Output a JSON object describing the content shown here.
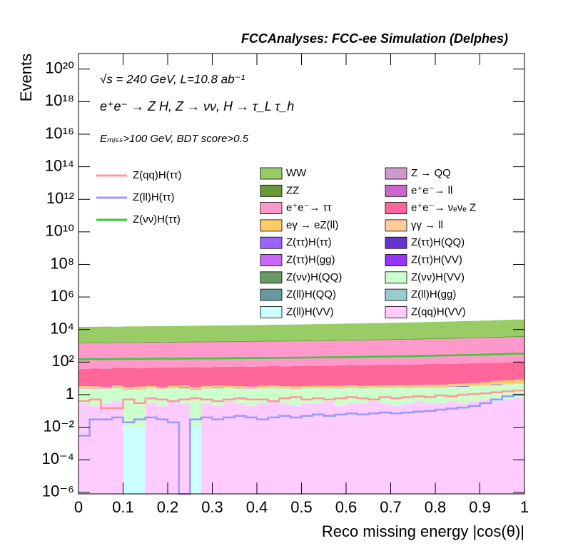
{
  "chart_data": {
    "type": "stacked_histogram",
    "title": "FCCAnalyses: FCC-ee Simulation (Delphes)",
    "annotations": [
      "√s = 240 GeV, L=10.8 ab⁻¹",
      "e⁺e⁻ → Z H, Z → νν, H → τ_L τ_h",
      "Eₘᵢₛₛ>100 GeV, BDT score>0.5"
    ],
    "x_label": "Reco missing energy |cos(θ)|",
    "y_label": "Events",
    "log_y": true,
    "xlim": [
      0,
      1
    ],
    "ylim": [
      8e-07,
      9e+20
    ],
    "xticks": [
      0,
      0.1,
      0.2,
      0.3,
      0.4,
      0.5,
      0.6,
      0.7,
      0.8,
      0.9,
      1
    ],
    "yticks": [
      {
        "value": 1e-06,
        "label": "10⁻⁶"
      },
      {
        "value": 0.0001,
        "label": "10⁻⁴"
      },
      {
        "value": 0.01,
        "label": "10⁻²"
      },
      1,
      {
        "value": 100,
        "label": "10²"
      },
      {
        "value": 10000,
        "label": "10⁴"
      },
      {
        "value": 1000000.0,
        "label": "10⁶"
      },
      {
        "value": 100000000.0,
        "label": "10⁸"
      },
      {
        "value": 10000000000.0,
        "label": "10¹⁰"
      },
      {
        "value": 1000000000000.0,
        "label": "10¹²"
      },
      {
        "value": 100000000000000.0,
        "label": "10¹⁴"
      },
      {
        "value": 1e+16,
        "label": "10¹⁶"
      },
      {
        "value": 1e+18,
        "label": "10¹⁸"
      },
      {
        "value": 1e+20,
        "label": "10²⁰"
      }
    ],
    "bins": [
      0,
      0.025,
      0.05,
      0.075,
      0.1,
      0.125,
      0.15,
      0.175,
      0.2,
      0.225,
      0.25,
      0.275,
      0.3,
      0.325,
      0.35,
      0.375,
      0.4,
      0.425,
      0.45,
      0.475,
      0.5,
      0.525,
      0.55,
      0.575,
      0.6,
      0.625,
      0.65,
      0.675,
      0.7,
      0.725,
      0.75,
      0.775,
      0.8,
      0.825,
      0.85,
      0.875,
      0.9,
      0.925,
      0.95,
      0.975,
      1
    ],
    "lines": [
      {
        "name": "Z(qq)H(ττ)",
        "color": "#ff9999",
        "values": [
          0.4,
          0.5,
          0.15,
          0.15,
          0.5,
          0.3,
          0.6,
          0.5,
          0.4,
          0.5,
          0.6,
          0.5,
          0.4,
          0.5,
          0.6,
          0.5,
          0.5,
          0.4,
          0.6,
          0.7,
          0.5,
          0.6,
          0.5,
          0.6,
          0.7,
          0.6,
          0.5,
          0.7,
          0.6,
          0.7,
          0.8,
          0.7,
          0.9,
          0.8,
          1,
          1.1,
          1.2,
          1.4,
          1.6,
          1.8
        ]
      },
      {
        "name": "Z(ll)H(ττ)",
        "color": "#9999ff",
        "values": [
          0.003,
          0.03,
          0.03,
          0.04,
          0.02,
          0.03,
          0.04,
          0.03,
          0.02,
          0,
          0.03,
          0.04,
          0.03,
          0.04,
          0.05,
          0.04,
          0.03,
          0.04,
          0.05,
          0.04,
          0.05,
          0.06,
          0.05,
          0.06,
          0.07,
          0.06,
          0.07,
          0.08,
          0.07,
          0.08,
          0.09,
          0.1,
          0.12,
          0.14,
          0.16,
          0.2,
          0.3,
          0.5,
          0.8,
          1
        ]
      },
      {
        "name": "Z(νν)H(ττ)",
        "color": "#33cc33",
        "values": [
          150,
          152,
          150,
          155,
          158,
          156,
          160,
          162,
          160,
          165,
          168,
          170,
          168,
          172,
          175,
          178,
          180,
          182,
          185,
          188,
          190,
          195,
          198,
          200,
          205,
          210,
          215,
          220,
          225,
          230,
          238,
          245,
          252,
          260,
          270,
          280,
          292,
          305,
          318,
          330
        ]
      }
    ],
    "series": [
      {
        "name": "WW",
        "color": "#99cc66",
        "values": [
          13000,
          13200,
          13500,
          13300,
          13800,
          14000,
          14200,
          14500,
          14600,
          14900,
          15200,
          15500,
          15800,
          16000,
          16400,
          16800,
          17100,
          17500,
          17900,
          18300,
          18800,
          19300,
          19800,
          20400,
          21000,
          21600,
          22300,
          23000,
          23700,
          24500,
          25300,
          26200,
          27200,
          28300,
          29500,
          30800,
          32200,
          33800,
          35500,
          37000
        ]
      },
      {
        "name": "Z → QQ",
        "color": "#cc99cc",
        "values": [
          0.3,
          0.2,
          0.3,
          0.4,
          0.3,
          0.2,
          0.3,
          0.3,
          0.4,
          0.3,
          0.2,
          0.3,
          0.4,
          0.3,
          0.3,
          0.2,
          0.4,
          0.3,
          0.3,
          0.4,
          0.3,
          0.5,
          0.4,
          0.5,
          0.6,
          0.5,
          0.7,
          0.6,
          0.8,
          0.9,
          1,
          1.2,
          1.5,
          1.8,
          2,
          3,
          5,
          8,
          10,
          12
        ]
      },
      {
        "name": "ZZ",
        "color": "#669933",
        "values": [
          160,
          165,
          158,
          170,
          172,
          168,
          175,
          180,
          178,
          182,
          185,
          190,
          188,
          195,
          198,
          200,
          205,
          208,
          210,
          215,
          220,
          225,
          230,
          232,
          238,
          245,
          250,
          255,
          262,
          270,
          278,
          285,
          295,
          305,
          315,
          328,
          340,
          355,
          370,
          385
        ]
      },
      {
        "name": "e⁺e⁻→ ll",
        "color": "#cc66cc",
        "values": [
          4,
          5,
          4,
          6,
          5,
          4,
          5,
          6,
          5,
          4,
          6,
          5,
          5,
          6,
          4,
          5,
          6,
          5,
          5,
          4,
          6,
          5,
          6,
          5,
          4,
          5,
          6,
          5,
          5,
          6,
          5,
          4,
          6,
          5,
          5,
          6,
          5,
          6,
          5,
          6
        ]
      },
      {
        "name": "e⁺e⁻→ ττ",
        "color": "#ff99cc",
        "values": [
          1400,
          1450,
          1420,
          1480,
          1500,
          1470,
          1520,
          1550,
          1530,
          1580,
          1600,
          1620,
          1650,
          1640,
          1700,
          1720,
          1750,
          1780,
          1800,
          1830,
          1870,
          1900,
          1950,
          2000,
          2050,
          2100,
          2150,
          2200,
          2260,
          2320,
          2400,
          2480,
          2560,
          2650,
          2750,
          2860,
          2980,
          3100,
          3250,
          3400
        ]
      },
      {
        "name": "e⁺e⁻→ νₑνₑ Z",
        "color": "#ff6699",
        "values": [
          35,
          38,
          36,
          40,
          42,
          39,
          41,
          44,
          43,
          45,
          46,
          44,
          47,
          48,
          50,
          49,
          52,
          53,
          51,
          55,
          56,
          58,
          57,
          60,
          62,
          61,
          64,
          66,
          68,
          67,
          70,
          72,
          75,
          74,
          78,
          80,
          82,
          85,
          88,
          90
        ]
      },
      {
        "name": "eγ → eZ(ll)",
        "color": "#ffcc66",
        "values": [
          0.6,
          0.5,
          0.4,
          0.6,
          0.5,
          0.7,
          0.4,
          0.5,
          0.6,
          0.5,
          0.4,
          0.6,
          0.5,
          0.5,
          0.7,
          0.4,
          0.6,
          0.5,
          0.5,
          0.6,
          0.4,
          0.5,
          0.6,
          0.7,
          0.5,
          0.4,
          0.6,
          0.5,
          0.6,
          0.8,
          0.7,
          0.6,
          0.9,
          0.8,
          1,
          1.2,
          1.5,
          2,
          2.5,
          3
        ]
      },
      {
        "name": "γγ → ll",
        "color": "#ffcc99",
        "values": [
          0.3,
          0.3,
          0.2,
          0.3,
          0.4,
          0.3,
          0.3,
          0.2,
          0.3,
          0.3,
          0.4,
          0.3,
          0.3,
          0.3,
          0.2,
          0.3,
          0.3,
          0.4,
          0.3,
          0.3,
          0.3,
          0.2,
          0.3,
          0.3,
          0.4,
          0.3,
          0.3,
          0.3,
          0.4,
          0.3,
          0.3,
          0.4,
          0.3,
          0.4,
          0.4,
          0.5,
          0.5,
          0.6,
          0.6,
          0.7
        ]
      },
      {
        "name": "Z(ττ)H(ττ)",
        "color": "#9966ff",
        "values": [
          0.05,
          0.05,
          0.04,
          0.05,
          0.06,
          0.05,
          0.05,
          0.04,
          0.05,
          0.05,
          0.06,
          0.05,
          0.05,
          0.04,
          0.05,
          0.05,
          0.06,
          0.05,
          0.05,
          0.04,
          0.05,
          0.05,
          0.06,
          0.05,
          0.05,
          0.04,
          0.05,
          0.05,
          0.06,
          0.05,
          0.05,
          0.04,
          0.05,
          0.05,
          0.06,
          0.05,
          0.05,
          0.04,
          0.05,
          0.05
        ]
      },
      {
        "name": "Z(ττ)H(QQ)",
        "color": "#6633cc",
        "values": [
          0.02,
          0.01,
          0,
          0,
          0,
          0,
          0,
          0,
          0,
          0,
          0,
          0,
          0,
          0,
          0,
          0,
          0,
          0,
          0,
          0,
          0,
          0,
          0.01,
          0,
          0.05,
          0.1,
          0.02,
          0.05,
          0,
          0.03,
          0.02,
          0.05,
          0.01,
          0.1,
          0.2,
          0.01,
          0.03,
          0.05,
          0.01,
          0.002
        ]
      },
      {
        "name": "Z(ττ)H(gg)",
        "color": "#cc66ff",
        "values": [
          0.01,
          0.01,
          0.01,
          0.01,
          0.01,
          0.01,
          0.01,
          0.01,
          0.01,
          0.01,
          0.01,
          0.01,
          0.01,
          0.01,
          0.01,
          0.01,
          0.01,
          0.01,
          0.01,
          0.01,
          0.01,
          0.01,
          0.01,
          0.01,
          0.01,
          0.01,
          0.01,
          0.01,
          0.01,
          0.01,
          0.01,
          0.01,
          0.01,
          0.01,
          0.01,
          0.01,
          0.01,
          0.01,
          0.01,
          0.01
        ]
      },
      {
        "name": "Z(ττ)H(VV)",
        "color": "#9933ff",
        "values": [
          0.02,
          0.02,
          0.02,
          0.02,
          0.02,
          0.02,
          0.02,
          0.02,
          0.02,
          0.02,
          0.02,
          0.02,
          0.02,
          0.02,
          0.02,
          0.02,
          0.02,
          0.02,
          0.02,
          0.02,
          0.02,
          0.02,
          0.02,
          0.02,
          0.02,
          0.02,
          0.02,
          0.02,
          0.02,
          0.02,
          0.02,
          0.02,
          0.02,
          0.02,
          0.02,
          0.02,
          0.02,
          0.02,
          0.02,
          0.02
        ]
      },
      {
        "name": "Z(νν)H(QQ)",
        "color": "#669966",
        "values": [
          0,
          0,
          0,
          0.1,
          0,
          0,
          0,
          0,
          0,
          0.3,
          0,
          0,
          0.2,
          0,
          0,
          0,
          0,
          0,
          0,
          0,
          0.05,
          0,
          0,
          0,
          0,
          0,
          0,
          0,
          0,
          0,
          0,
          0,
          0,
          0,
          0,
          0,
          0,
          0.3,
          0,
          0
        ]
      },
      {
        "name": "Z(νν)H(VV)",
        "color": "#ccffcc",
        "values": [
          2,
          2.1,
          2,
          2.2,
          2,
          2.1,
          2.3,
          2,
          2.1,
          2.2,
          2,
          2.1,
          2.3,
          2.2,
          2,
          2.1,
          2.2,
          2.3,
          2.1,
          2,
          2.2,
          2.3,
          2.1,
          2.2,
          2.4,
          2.3,
          2.2,
          2.4,
          2.5,
          2.3,
          2.4,
          2.6,
          2.5,
          2.7,
          2.8,
          3,
          3.2,
          3.5,
          3.8,
          4
        ]
      },
      {
        "name": "Z(ll)H(QQ)",
        "color": "#669999",
        "values": [
          0,
          0,
          0,
          0,
          0,
          0,
          0,
          0,
          0,
          0,
          0,
          0,
          0,
          0,
          0,
          0,
          0,
          0,
          0,
          0,
          0,
          0,
          0,
          0,
          0,
          0,
          0,
          0,
          0,
          0,
          0,
          0,
          0,
          0,
          0,
          0,
          0.002,
          0,
          0.001,
          0
        ]
      },
      {
        "name": "Z(ll)H(gg)",
        "color": "#99cccc",
        "values": [
          0,
          0,
          0,
          0,
          0,
          0,
          0,
          0,
          0,
          0,
          0,
          0,
          0,
          0,
          0,
          0,
          0,
          0,
          0,
          0,
          0,
          0,
          0,
          0,
          0,
          0,
          0,
          0,
          0,
          0,
          0,
          0,
          0,
          0,
          0,
          0,
          0,
          0,
          0,
          0.005
        ]
      },
      {
        "name": "Z(ll)H(VV)",
        "color": "#ccffff",
        "values": [
          0.01,
          0.01,
          0.01,
          0.01,
          0.01,
          0.01,
          0.01,
          0.01,
          0.01,
          0,
          0.01,
          0.01,
          0.01,
          0.01,
          0.01,
          0.01,
          0.01,
          0.01,
          0.01,
          0.01,
          0.01,
          0.01,
          0.01,
          0.01,
          0.01,
          0.01,
          0.01,
          0.01,
          0.01,
          0.01,
          0.01,
          0.01,
          0.01,
          0.01,
          0.01,
          0.01,
          0.01,
          0.01,
          0.01,
          0.01
        ]
      },
      {
        "name": "Z(qq)H(VV)",
        "color": "#ffccff",
        "values": [
          0.3,
          0.2,
          0.3,
          0.4,
          0,
          0,
          0.3,
          0.2,
          0.4,
          0.3,
          0,
          0.3,
          0.2,
          0.4,
          0.3,
          0.2,
          0.3,
          0.4,
          0.3,
          0.2,
          0.3,
          0.3,
          0.4,
          0.2,
          0.3,
          0.3,
          0.4,
          0.3,
          0.2,
          0.3,
          0.4,
          0.3,
          0.3,
          0.4,
          0.3,
          0.4,
          0.5,
          0.4,
          0.5,
          0.6
        ]
      }
    ]
  }
}
